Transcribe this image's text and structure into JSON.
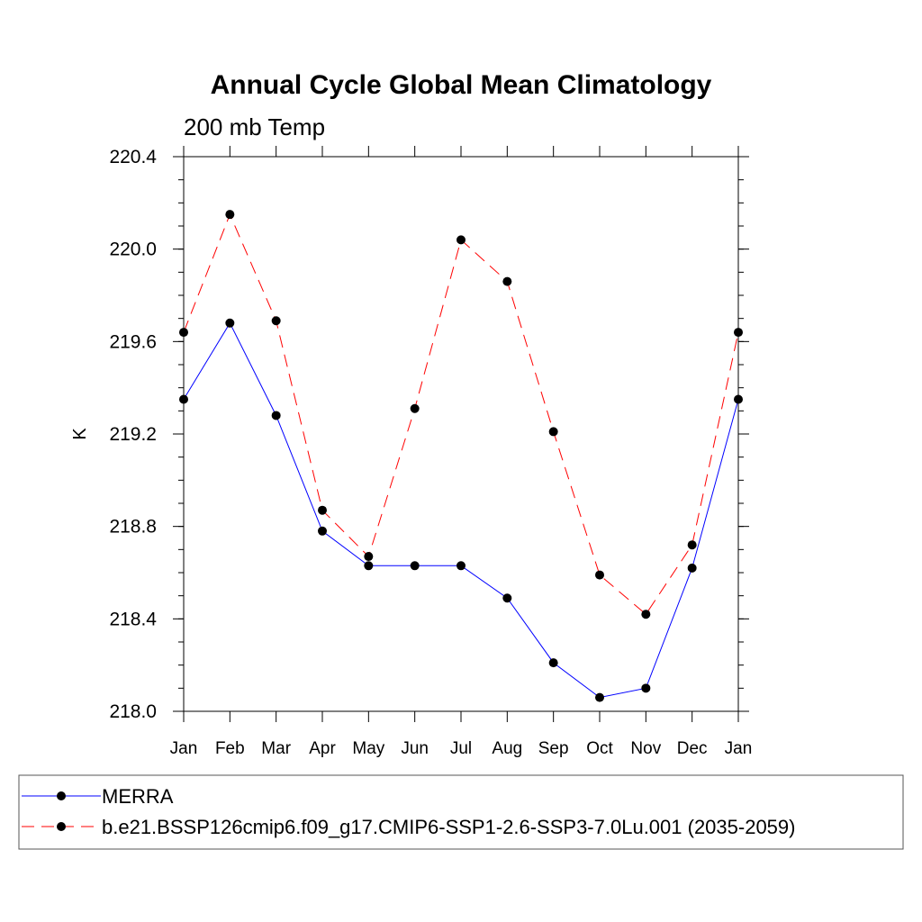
{
  "chart_data": {
    "type": "line",
    "title": "Annual Cycle Global Mean Climatology",
    "subtitle": "200 mb Temp",
    "xlabel": "",
    "ylabel": "K",
    "categories": [
      "Jan",
      "Feb",
      "Mar",
      "Apr",
      "May",
      "Jun",
      "Jul",
      "Aug",
      "Sep",
      "Oct",
      "Nov",
      "Dec",
      "Jan"
    ],
    "ylim": [
      218.0,
      220.4
    ],
    "yticks": [
      "218.0",
      "218.4",
      "218.8",
      "219.2",
      "219.6",
      "220.0",
      "220.4"
    ],
    "grid": false,
    "legend_position": "bottom",
    "series": [
      {
        "name": "MERRA",
        "color": "#0000ff",
        "dash": "solid",
        "marker": "filled-circle",
        "values": [
          219.35,
          219.68,
          219.28,
          218.78,
          218.63,
          218.63,
          218.63,
          218.49,
          218.21,
          218.06,
          218.1,
          218.62,
          219.35
        ]
      },
      {
        "name": "b.e21.BSSP126cmip6.f09_g17.CMIP6-SSP1-2.6-SSP3-7.0Lu.001 (2035-2059)",
        "color": "#ff0000",
        "dash": "dashed",
        "marker": "filled-circle",
        "values": [
          219.64,
          220.15,
          219.69,
          218.87,
          218.67,
          219.31,
          220.04,
          219.86,
          219.21,
          218.59,
          218.42,
          218.72,
          219.64
        ]
      }
    ]
  }
}
